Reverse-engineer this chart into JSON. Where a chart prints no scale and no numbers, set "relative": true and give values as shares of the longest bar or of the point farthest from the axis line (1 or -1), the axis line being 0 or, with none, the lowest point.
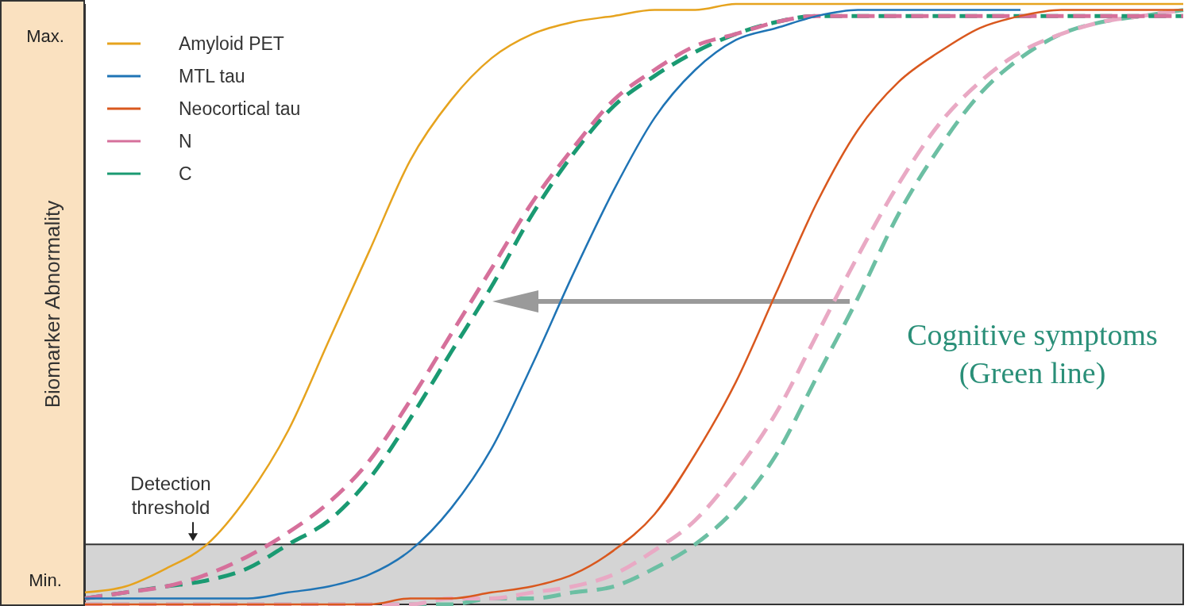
{
  "chart_data": {
    "type": "line",
    "ylabel": "Biomarker Abnormality",
    "categories": [
      null,
      null,
      null,
      null,
      null,
      null,
      null,
      null,
      null,
      null,
      null,
      null,
      null,
      null,
      null,
      null,
      null,
      null,
      null,
      null,
      null,
      null,
      null,
      null,
      null,
      null,
      null,
      null
    ],
    "relative": true,
    "series": [
      {
        "name": "Amyloid PET",
        "color": "#e6a31e",
        "line_style": "solid",
        "values": [
          0.02,
          0.03,
          0.06,
          0.1,
          0.18,
          0.29,
          0.44,
          0.59,
          0.74,
          0.84,
          0.91,
          0.95,
          0.97,
          0.98,
          0.99,
          0.99,
          1,
          1,
          1,
          1,
          1,
          1,
          1,
          1,
          1,
          1,
          1,
          1
        ]
      },
      {
        "name": "MTL tau",
        "color": "#1f74b5",
        "line_style": "solid",
        "values": [
          0.01,
          0.01,
          0.01,
          0.01,
          0.01,
          0.02,
          0.03,
          0.05,
          0.09,
          0.16,
          0.26,
          0.4,
          0.55,
          0.69,
          0.81,
          0.89,
          0.94,
          0.96,
          0.98,
          0.99,
          0.99,
          0.99,
          0.99,
          0.99,
          null,
          null,
          null,
          null
        ]
      },
      {
        "name": "Neocortical tau",
        "color": "#d9581e",
        "line_style": "solid",
        "values": [
          0,
          0,
          0,
          0,
          0,
          0,
          0,
          0,
          0.01,
          0.01,
          0.02,
          0.03,
          0.05,
          0.09,
          0.15,
          0.25,
          0.37,
          0.52,
          0.67,
          0.79,
          0.87,
          0.92,
          0.96,
          0.98,
          0.99,
          0.99,
          0.99,
          0.99
        ]
      },
      {
        "name": "N",
        "color": "#d6709b",
        "line_style": "dashed",
        "values": [
          0.01,
          0.02,
          0.03,
          0.05,
          0.08,
          0.12,
          0.17,
          0.24,
          0.34,
          0.45,
          0.56,
          0.67,
          0.76,
          0.84,
          0.89,
          0.93,
          0.95,
          0.97,
          0.98,
          0.98,
          0.98,
          0.98,
          0.98,
          0.98,
          0.98,
          0.98,
          0.98,
          0.98
        ]
      },
      {
        "name": "C",
        "color": "#1a9a72",
        "line_style": "dashed",
        "values": [
          0.01,
          0.02,
          0.03,
          0.04,
          0.06,
          0.1,
          0.14,
          0.21,
          0.31,
          0.42,
          0.53,
          0.65,
          0.75,
          0.83,
          0.88,
          0.92,
          0.95,
          0.97,
          0.98,
          0.98,
          0.98,
          0.98,
          0.98,
          0.98,
          0.98,
          0.98,
          0.98,
          0.98
        ]
      },
      {
        "color": "#e9a9c4",
        "line_style": "dashed",
        "values": [
          0,
          0,
          0,
          0,
          0,
          0,
          0,
          0,
          0,
          0.01,
          0.01,
          0.02,
          0.03,
          0.05,
          0.09,
          0.14,
          0.22,
          0.32,
          0.45,
          0.58,
          0.7,
          0.8,
          0.87,
          0.92,
          0.95,
          0.97,
          0.98,
          0.99
        ]
      },
      {
        "color": "#6cbfa3",
        "line_style": "dashed",
        "values": [
          0,
          0,
          0,
          0,
          0,
          0,
          0,
          0,
          0,
          0,
          0.01,
          0.01,
          0.02,
          0.03,
          0.06,
          0.1,
          0.16,
          0.25,
          0.38,
          0.51,
          0.65,
          0.76,
          0.85,
          0.91,
          0.95,
          0.97,
          0.98,
          0.99
        ]
      }
    ],
    "bands": [
      {
        "axis": "y",
        "from": 0,
        "to": 0.1,
        "label": "Detection threshold",
        "color": "#d4d4d4"
      }
    ],
    "annotations": [
      "Max.",
      "Min.",
      "Cognitive symptoms (Green line)"
    ],
    "legend": "top left"
  }
}
